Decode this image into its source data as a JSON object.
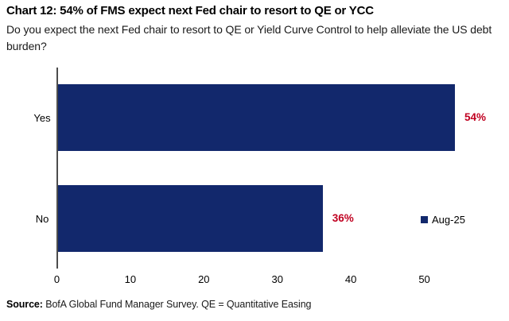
{
  "header": {
    "title": "Chart 12: 54% of FMS expect next Fed chair to resort to QE or YCC",
    "subtitle": "Do you expect the next Fed chair to resort to QE or Yield Curve Control to help alleviate the US debt burden?"
  },
  "chart_data": {
    "type": "bar",
    "orientation": "horizontal",
    "categories": [
      "Yes",
      "No"
    ],
    "values": [
      54,
      36
    ],
    "value_labels": [
      "54%",
      "36%"
    ],
    "series_name": "Aug-25",
    "xticks": [
      0,
      10,
      20,
      30,
      40,
      50
    ],
    "xlim": [
      0,
      58
    ],
    "grid": false,
    "legend_position": "right",
    "title": "Chart 12: 54% of FMS expect next Fed chair to resort to QE or YCC",
    "xlabel": "",
    "ylabel": "",
    "colors": {
      "bar": "#12286C",
      "value_label": "#C00020",
      "axis": "#4d4d4d"
    }
  },
  "legend": {
    "label": "Aug-25",
    "swatch_color": "#12286C"
  },
  "footer": {
    "source_label": "Source:",
    "source_text": " BofA Global Fund Manager Survey. QE = Quantitative Easing"
  }
}
